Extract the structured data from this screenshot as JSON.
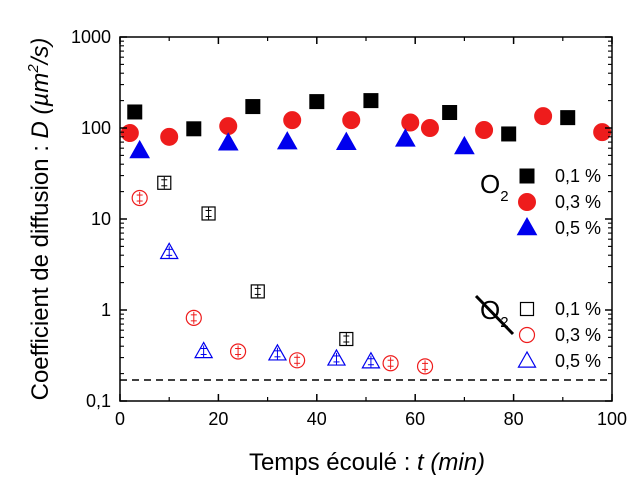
{
  "chart_data": {
    "type": "scatter",
    "xlabel": {
      "text": "Temps écoulé : ",
      "var": "t",
      "unit": " (min)"
    },
    "ylabel": {
      "text": "Coefficient de diffusion : ",
      "var": "D",
      "unit_open": " (µm",
      "unit_exp": "2",
      "unit_close": "/s)"
    },
    "xlim": [
      0,
      100
    ],
    "ylim": [
      0.1,
      1000
    ],
    "yscale": "log",
    "x_ticks": [
      0,
      20,
      40,
      60,
      80,
      100
    ],
    "x_tick_labels": [
      "0",
      "20",
      "40",
      "60",
      "80",
      "100"
    ],
    "y_ticks": [
      0.1,
      1,
      10,
      100,
      1000
    ],
    "y_tick_labels": [
      "0,1",
      "1",
      "10",
      "100",
      "1000"
    ],
    "grid": false,
    "legend_position": "right",
    "reference_line": {
      "y": 0.17,
      "style": "dashed"
    },
    "legend_groups": [
      {
        "label_main": "O",
        "label_sub": "2",
        "struck": false
      },
      {
        "label_main": "O",
        "label_sub": "2",
        "struck": true
      }
    ],
    "series": [
      {
        "name": "0,1 %",
        "group": 0,
        "marker": "square",
        "filled": true,
        "color": "#000000",
        "x": [
          3,
          15,
          27,
          40,
          51,
          67,
          79,
          91
        ],
        "y": [
          150,
          98,
          172,
          195,
          200,
          148,
          86,
          130
        ]
      },
      {
        "name": "0,3 %",
        "group": 0,
        "marker": "circle",
        "filled": true,
        "color": "#ee1c1c",
        "x": [
          2,
          10,
          22,
          35,
          47,
          59,
          63,
          74,
          86,
          98
        ],
        "y": [
          88,
          80,
          105,
          122,
          122,
          115,
          100,
          95,
          135,
          90
        ]
      },
      {
        "name": "0,5 %",
        "group": 0,
        "marker": "triangle",
        "filled": true,
        "color": "#0000ee",
        "x": [
          4,
          22,
          34,
          46,
          58,
          70
        ],
        "y": [
          56,
          68,
          70,
          69,
          75,
          62
        ]
      },
      {
        "name": "0,1 %",
        "group": 1,
        "marker": "square",
        "filled": false,
        "color": "#000000",
        "x": [
          9,
          18,
          28,
          46
        ],
        "y": [
          25,
          11.5,
          1.6,
          0.48
        ]
      },
      {
        "name": "0,3 %",
        "group": 1,
        "marker": "circle",
        "filled": false,
        "color": "#ee1c1c",
        "x": [
          4,
          15,
          24,
          36,
          55,
          62
        ],
        "y": [
          17,
          0.82,
          0.35,
          0.28,
          0.26,
          0.24
        ]
      },
      {
        "name": "0,5 %",
        "group": 1,
        "marker": "triangle",
        "filled": false,
        "color": "#0000ee",
        "x": [
          10,
          17,
          32,
          44,
          51
        ],
        "y": [
          4.3,
          0.35,
          0.33,
          0.29,
          0.27
        ]
      }
    ]
  }
}
